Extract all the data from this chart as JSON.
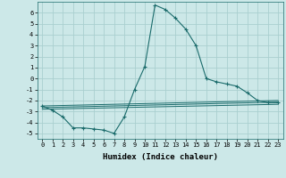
{
  "xlabel": "Humidex (Indice chaleur)",
  "bg_color": "#cce8e8",
  "grid_color": "#aacfcf",
  "line_color": "#1a6b6b",
  "xlim": [
    -0.5,
    23.5
  ],
  "ylim": [
    -5.5,
    7.0
  ],
  "yticks": [
    -5,
    -4,
    -3,
    -2,
    -1,
    0,
    1,
    2,
    3,
    4,
    5,
    6
  ],
  "xticks": [
    0,
    1,
    2,
    3,
    4,
    5,
    6,
    7,
    8,
    9,
    10,
    11,
    12,
    13,
    14,
    15,
    16,
    17,
    18,
    19,
    20,
    21,
    22,
    23
  ],
  "series_main": {
    "x": [
      0,
      1,
      2,
      3,
      4,
      5,
      6,
      7,
      8,
      9,
      10,
      11,
      12,
      13,
      14,
      15,
      16,
      17,
      18,
      19,
      20,
      21,
      22,
      23
    ],
    "y": [
      -2.5,
      -2.9,
      -3.5,
      -4.5,
      -4.5,
      -4.6,
      -4.7,
      -5.0,
      -3.5,
      -1.0,
      1.1,
      6.7,
      6.3,
      5.5,
      4.5,
      3.0,
      0.0,
      -0.3,
      -0.5,
      -0.7,
      -1.3,
      -2.0,
      -2.2,
      -2.2
    ]
  },
  "series_flat": [
    {
      "x": [
        0,
        23
      ],
      "y": [
        -2.5,
        -2.0
      ]
    },
    {
      "x": [
        0,
        23
      ],
      "y": [
        -2.65,
        -2.15
      ]
    },
    {
      "x": [
        0,
        23
      ],
      "y": [
        -2.8,
        -2.35
      ]
    }
  ],
  "xlabel_fontsize": 6.5,
  "tick_fontsize": 5.0
}
